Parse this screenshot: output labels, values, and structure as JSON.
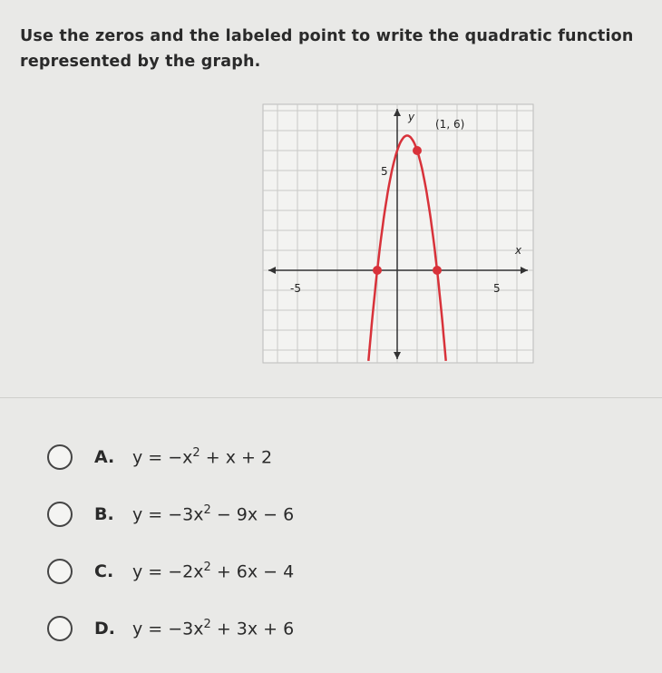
{
  "question": "Use the zeros and the labeled point to write the quadratic function represented by the graph.",
  "graph": {
    "y_axis_label": "y",
    "x_axis_label": "x",
    "point_label": "(1, 6)",
    "y_tick_label": "5",
    "x_tick_labels": [
      "-5",
      "5"
    ]
  },
  "options": [
    {
      "letter": "A.",
      "equation": [
        "y = −x",
        "2",
        " + x + 2"
      ]
    },
    {
      "letter": "B.",
      "equation": [
        "y = −3x",
        "2",
        " − 9x − 6"
      ]
    },
    {
      "letter": "C.",
      "equation": [
        "y = −2x",
        "2",
        " + 6x − 4"
      ]
    },
    {
      "letter": "D.",
      "equation": [
        "y = −3x",
        "2",
        " + 3x + 6"
      ]
    }
  ]
}
